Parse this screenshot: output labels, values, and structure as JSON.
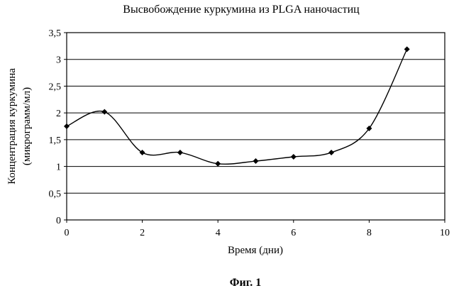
{
  "chart_data": {
    "type": "line",
    "title": "Высвобождение куркумина из PLGA наночастиц",
    "xlabel": "Время (дни)",
    "ylabel": [
      "Концентрация куркумина",
      "(микрограмм/мл)"
    ],
    "x": [
      0,
      1,
      2,
      3,
      4,
      5,
      6,
      7,
      8,
      9
    ],
    "series": [
      {
        "values": [
          1.75,
          2.02,
          1.26,
          1.26,
          1.05,
          1.1,
          1.18,
          1.26,
          1.71,
          3.19
        ]
      }
    ],
    "xlim": [
      0,
      10
    ],
    "ylim": [
      0,
      3.5
    ],
    "xticks": [
      "0",
      "2",
      "4",
      "6",
      "8",
      "10"
    ],
    "yticks": [
      "0",
      "0,5",
      "1",
      "1,5",
      "2",
      "2,5",
      "3",
      "3,5"
    ],
    "grid": "horizontal",
    "line_color": "#000000",
    "marker": "diamond"
  },
  "caption": "Фиг. 1"
}
